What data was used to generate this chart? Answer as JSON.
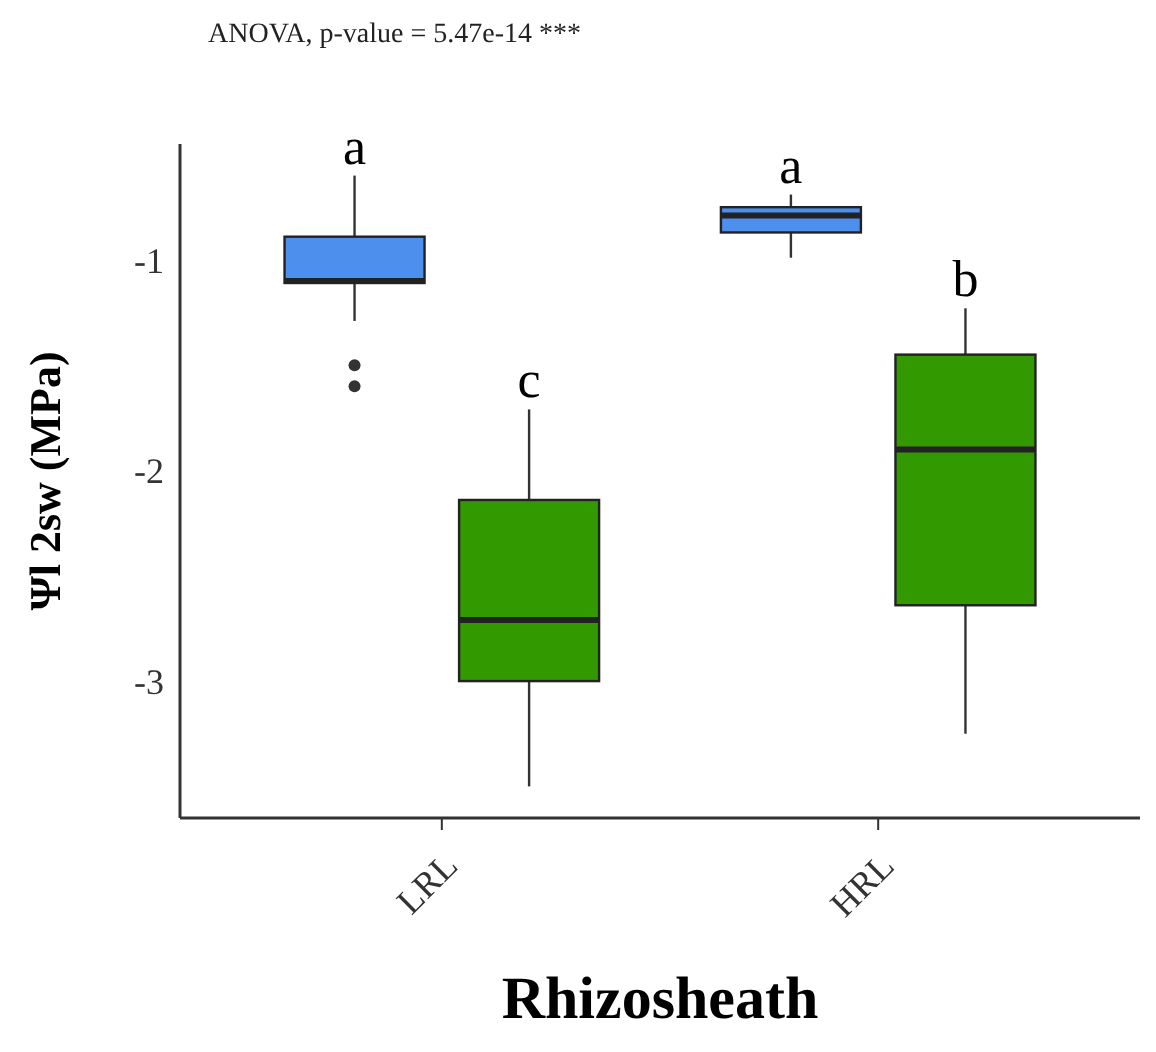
{
  "chart_data": {
    "type": "box",
    "subtitle": "ANOVA, p-value = 5.47e-14 ***",
    "xlabel": "Rhizosheath",
    "ylabel": "Ψl 2sw (MPa)",
    "categories": [
      "LRL",
      "HRL"
    ],
    "series": [
      {
        "color": "#4d8fec",
        "boxes": [
          {
            "low": -1.29,
            "q1": -1.11,
            "median": -1.1,
            "q3": -0.89,
            "high": -0.6,
            "outliers": [
              -1.5,
              -1.6
            ]
          },
          {
            "low": -0.99,
            "q1": -0.87,
            "median": -0.79,
            "q3": -0.75,
            "high": -0.69
          }
        ]
      },
      {
        "color": "#339900",
        "boxes": [
          {
            "low": -3.5,
            "q1": -3.0,
            "median": -2.71,
            "q3": -2.14,
            "high": -1.71
          },
          {
            "low": -3.25,
            "q1": -2.64,
            "median": -1.9,
            "q3": -1.45,
            "high": -1.23
          }
        ]
      }
    ],
    "annotations": [
      "a",
      "c",
      "a",
      "b"
    ],
    "ylim": [
      -3.65,
      -0.45
    ],
    "yticks": [
      -1,
      -2,
      -3
    ]
  }
}
